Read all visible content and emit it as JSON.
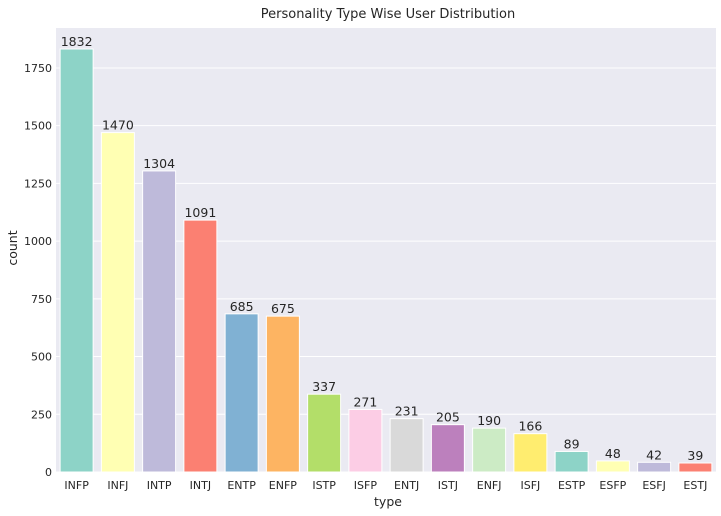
{
  "chart_data": {
    "type": "bar",
    "title": "Personality Type Wise User Distribution",
    "xlabel": "type",
    "ylabel": "count",
    "categories": [
      "INFP",
      "INFJ",
      "INTP",
      "INTJ",
      "ENTP",
      "ENFP",
      "ISTP",
      "ISFP",
      "ENTJ",
      "ISTJ",
      "ENFJ",
      "ISFJ",
      "ESTP",
      "ESFP",
      "ESFJ",
      "ESTJ"
    ],
    "values": [
      1832,
      1470,
      1304,
      1091,
      685,
      675,
      337,
      271,
      231,
      205,
      190,
      166,
      89,
      48,
      42,
      39
    ],
    "data_labels": [
      "1832",
      "1470",
      "1304",
      "1091",
      "685",
      "675",
      "337",
      "271",
      "231",
      "205",
      "190",
      "166",
      "89",
      "48",
      "42",
      "39"
    ],
    "yticks": [
      0,
      250,
      500,
      750,
      1000,
      1250,
      1500,
      1750
    ],
    "ytick_labels": [
      "0",
      "250",
      "500",
      "750",
      "1000",
      "1250",
      "1500",
      "1750"
    ],
    "ylim": [
      0,
      1923
    ],
    "grid": true,
    "colors": [
      "#8dd3c7",
      "#ffffb3",
      "#bebada",
      "#fb8072",
      "#80b1d3",
      "#fdb462",
      "#b3de69",
      "#fccde5",
      "#d9d9d9",
      "#bc80bd",
      "#ccebc5",
      "#ffed6f",
      "#8dd3c7",
      "#ffffb3",
      "#bebada",
      "#fb8072"
    ],
    "plot_background": "#eaeaf2",
    "grid_color": "#ffffff"
  }
}
